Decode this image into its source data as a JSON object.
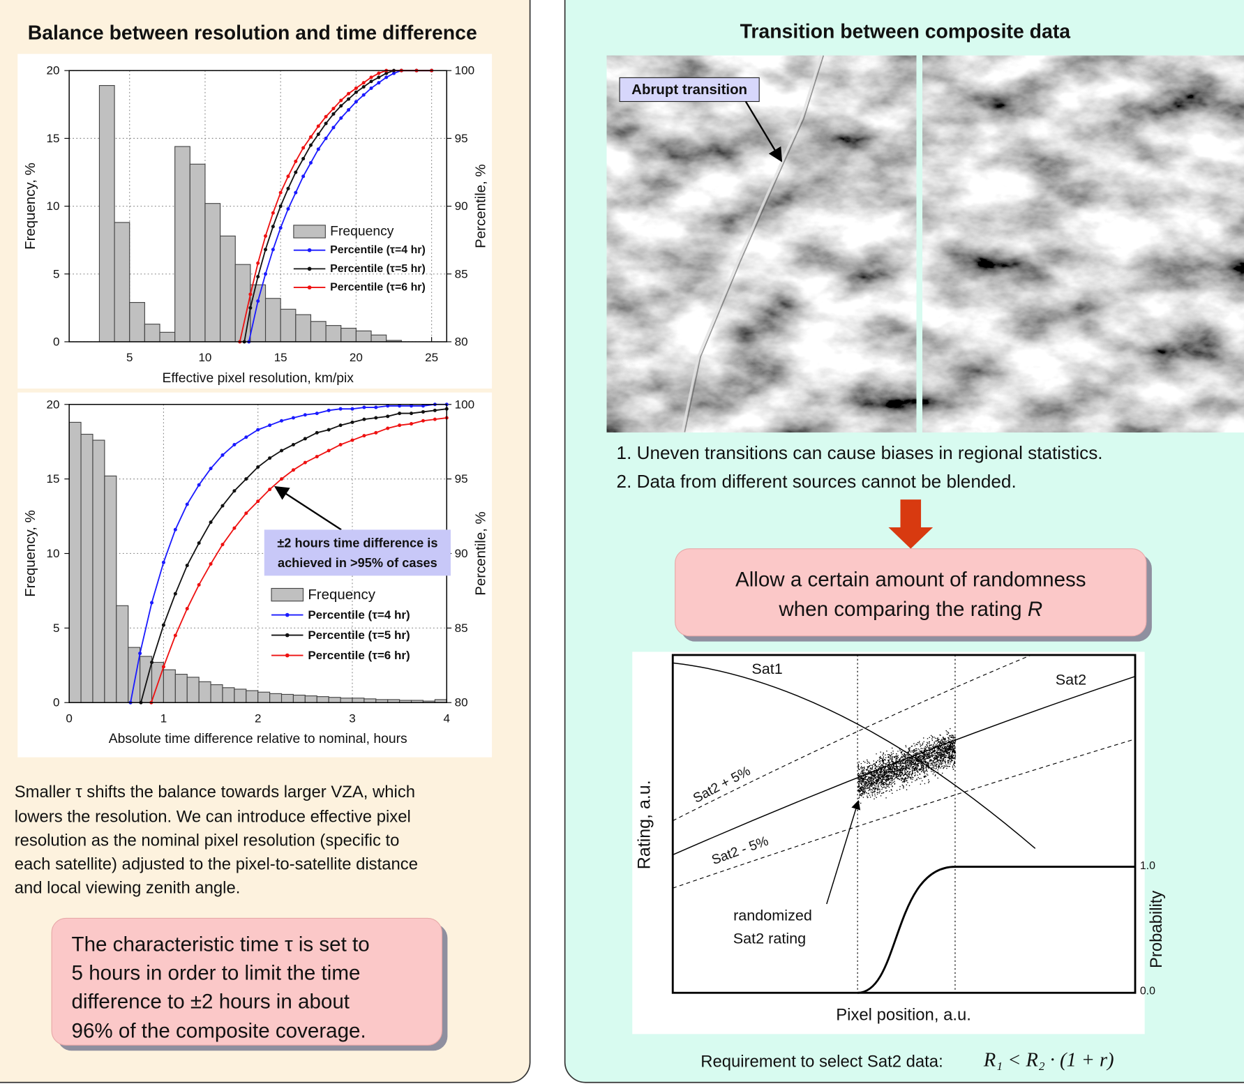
{
  "left_panel": {
    "title": "Balance between resolution and time difference",
    "paragraph": [
      "Smaller τ shifts the balance towards larger VZA, which",
      "lowers the resolution. We can introduce effective pixel",
      "resolution as the nominal pixel resolution (specific to",
      "each satellite) adjusted to the pixel-to-satellite distance",
      "and local viewing zenith angle."
    ],
    "callout": [
      "The characteristic time τ is set to",
      "5 hours in order to limit the time",
      "difference to ±2 hours in about",
      "96% of the composite coverage."
    ]
  },
  "chart_data": [
    {
      "type": "histogram",
      "xlabel": "Effective pixel resolution, km/pix",
      "ylabel": "Frequency, %",
      "y2label": "Percentile, %",
      "name": "Frequency",
      "color": "#c0c0c0",
      "bins": [
        3,
        4,
        5,
        6,
        7,
        8,
        9,
        10,
        11,
        12,
        13,
        14,
        15,
        16,
        17,
        18,
        19,
        20,
        21,
        22,
        23
      ],
      "values": [
        18.9,
        8.8,
        2.9,
        1.3,
        0.7,
        14.4,
        13.1,
        10.2,
        7.8,
        5.7,
        4.2,
        3.2,
        2.4,
        2.0,
        1.5,
        1.2,
        1.0,
        0.8,
        0.5,
        0.1
      ],
      "series": [
        {
          "name": "Percentile (τ=4 hr)",
          "color": "#1a1aff",
          "axis": "y2",
          "x": [
            12.9,
            13.5,
            14,
            14.5,
            15,
            15.5,
            16,
            16.5,
            17,
            17.5,
            18,
            18.5,
            19,
            19.5,
            20,
            20.5,
            21,
            21.5,
            22,
            22.5,
            23,
            24,
            25
          ],
          "values": [
            80,
            83,
            85,
            86.8,
            88.4,
            89.8,
            91,
            92.2,
            93.2,
            94.2,
            95,
            95.8,
            96.5,
            97.1,
            97.7,
            98.2,
            98.7,
            99.1,
            99.5,
            99.8,
            100,
            100,
            100
          ]
        },
        {
          "name": "Percentile (τ=5 hr)",
          "color": "#111111",
          "axis": "y2",
          "x": [
            12.6,
            13,
            13.5,
            14,
            14.5,
            15,
            15.5,
            16,
            16.5,
            17,
            17.5,
            18,
            18.5,
            19,
            19.5,
            20,
            20.5,
            21,
            21.5,
            22,
            22.5,
            23,
            24,
            25
          ],
          "values": [
            80,
            82.5,
            84.8,
            86.8,
            88.5,
            90,
            91.3,
            92.5,
            93.5,
            94.5,
            95.3,
            96.1,
            96.8,
            97.4,
            97.9,
            98.4,
            98.8,
            99.2,
            99.5,
            99.8,
            100,
            100,
            100,
            100
          ]
        },
        {
          "name": "Percentile (τ=6 hr)",
          "color": "#ee1111",
          "axis": "y2",
          "x": [
            12.3,
            13,
            13.5,
            14,
            14.5,
            15,
            15.5,
            16,
            16.5,
            17,
            17.5,
            18,
            18.5,
            19,
            19.5,
            20,
            20.5,
            21,
            21.5,
            22,
            23,
            24,
            25
          ],
          "values": [
            80,
            83.5,
            85.8,
            87.8,
            89.5,
            91,
            92.2,
            93.3,
            94.3,
            95.1,
            95.9,
            96.6,
            97.2,
            97.8,
            98.3,
            98.7,
            99.1,
            99.5,
            99.8,
            100,
            100,
            100,
            100
          ]
        }
      ],
      "xlim": [
        1,
        26
      ],
      "xticks": [
        5,
        10,
        15,
        20,
        25
      ],
      "ylim": [
        0,
        20
      ],
      "yticks": [
        0,
        5,
        10,
        15,
        20
      ],
      "y2lim": [
        80,
        100
      ],
      "y2ticks": [
        80,
        85,
        90,
        95,
        100
      ],
      "grid": true,
      "legend": "right"
    },
    {
      "type": "histogram",
      "xlabel": "Absolute time difference relative to nominal, hours",
      "ylabel": "Frequency, %",
      "y2label": "Percentile, %",
      "name": "Frequency",
      "color": "#c0c0c0",
      "annotation": [
        "±2 hours time difference is",
        "achieved in >95% of cases"
      ],
      "bins": [
        0,
        0.125,
        0.25,
        0.375,
        0.5,
        0.625,
        0.75,
        0.875,
        1,
        1.125,
        1.25,
        1.375,
        1.5,
        1.625,
        1.75,
        1.875,
        2,
        2.125,
        2.25,
        2.375,
        2.5,
        2.625,
        2.75,
        2.875,
        3,
        3.125,
        3.25,
        3.375,
        3.5,
        3.625,
        3.75,
        3.875,
        4
      ],
      "values": [
        18.8,
        18.0,
        17.6,
        15.2,
        6.5,
        3.7,
        3.1,
        2.7,
        2.2,
        1.9,
        1.7,
        1.4,
        1.2,
        1.0,
        0.9,
        0.8,
        0.7,
        0.6,
        0.55,
        0.5,
        0.45,
        0.4,
        0.35,
        0.3,
        0.3,
        0.25,
        0.2,
        0.2,
        0.15,
        0.15,
        0.1,
        0.2
      ],
      "series": [
        {
          "name": "Percentile (τ=4 hr)",
          "color": "#1a1aff",
          "axis": "y2",
          "x": [
            0.65,
            0.75,
            0.875,
            1,
            1.125,
            1.25,
            1.375,
            1.5,
            1.625,
            1.75,
            1.875,
            2,
            2.125,
            2.25,
            2.375,
            2.5,
            2.625,
            2.75,
            2.875,
            3,
            3.125,
            3.25,
            3.375,
            3.5,
            3.625,
            3.75,
            3.875,
            4
          ],
          "values": [
            80,
            83.3,
            86.7,
            89.4,
            91.6,
            93.3,
            94.6,
            95.7,
            96.6,
            97.3,
            97.8,
            98.3,
            98.6,
            98.9,
            99.1,
            99.3,
            99.4,
            99.6,
            99.7,
            99.7,
            99.8,
            99.8,
            99.9,
            99.9,
            99.9,
            99.9,
            100,
            100
          ]
        },
        {
          "name": "Percentile (τ=5 hr)",
          "color": "#111111",
          "axis": "y2",
          "x": [
            0.76,
            0.875,
            1,
            1.125,
            1.25,
            1.375,
            1.5,
            1.625,
            1.75,
            1.875,
            2,
            2.125,
            2.25,
            2.375,
            2.5,
            2.625,
            2.75,
            2.875,
            3,
            3.125,
            3.25,
            3.375,
            3.5,
            3.625,
            3.75,
            3.875,
            4
          ],
          "values": [
            80,
            82.7,
            85.2,
            87.3,
            89.2,
            90.7,
            92.1,
            93.2,
            94.2,
            95.0,
            95.8,
            96.4,
            96.9,
            97.3,
            97.7,
            98.1,
            98.3,
            98.6,
            98.8,
            99.0,
            99.1,
            99.2,
            99.4,
            99.4,
            99.5,
            99.6,
            99.7
          ]
        },
        {
          "name": "Percentile (τ=6 hr)",
          "color": "#ee1111",
          "axis": "y2",
          "x": [
            0.87,
            1,
            1.125,
            1.25,
            1.375,
            1.5,
            1.625,
            1.75,
            1.875,
            2,
            2.125,
            2.25,
            2.375,
            2.5,
            2.625,
            2.75,
            2.875,
            3,
            3.125,
            3.25,
            3.375,
            3.5,
            3.625,
            3.75,
            3.875,
            4
          ],
          "values": [
            80,
            82.4,
            84.5,
            86.3,
            87.9,
            89.3,
            90.6,
            91.7,
            92.7,
            93.5,
            94.3,
            95.0,
            95.6,
            96.1,
            96.5,
            96.9,
            97.3,
            97.6,
            97.9,
            98.1,
            98.4,
            98.6,
            98.7,
            98.9,
            99.0,
            99.1
          ]
        }
      ],
      "xlim": [
        0,
        4
      ],
      "xticks": [
        0,
        1,
        2,
        3,
        4
      ],
      "ylim": [
        0,
        20
      ],
      "yticks": [
        0,
        5,
        10,
        15,
        20
      ],
      "y2lim": [
        80,
        100
      ],
      "y2ticks": [
        80,
        85,
        90,
        95,
        100
      ],
      "grid": true,
      "legend": "right"
    }
  ],
  "right_panel": {
    "title": "Transition between composite data",
    "image_label": "Abrupt transition",
    "points": [
      "1. Uneven transitions can cause biases in regional statistics.",
      "2. Data from different sources cannot be blended."
    ],
    "callout": {
      "lines": [
        "Allow a certain amount of randomness",
        "when comparing the rating"
      ],
      "variable": "R"
    },
    "diagram": {
      "sat1": "Sat1",
      "sat2": "Sat2",
      "upper": "Sat2 + 5%",
      "lower": "Sat2 - 5%",
      "randomized": [
        "randomized",
        "Sat2 rating"
      ],
      "y_label": "Rating, a.u.",
      "y2_label": "Probability",
      "y2_top": "1.0",
      "y2_bottom": "0.0",
      "x_label": "Pixel position, a.u."
    },
    "requirement": "Requirement to select Sat2 data:",
    "formula": "R₁ < R₂ · (1 + r)"
  }
}
